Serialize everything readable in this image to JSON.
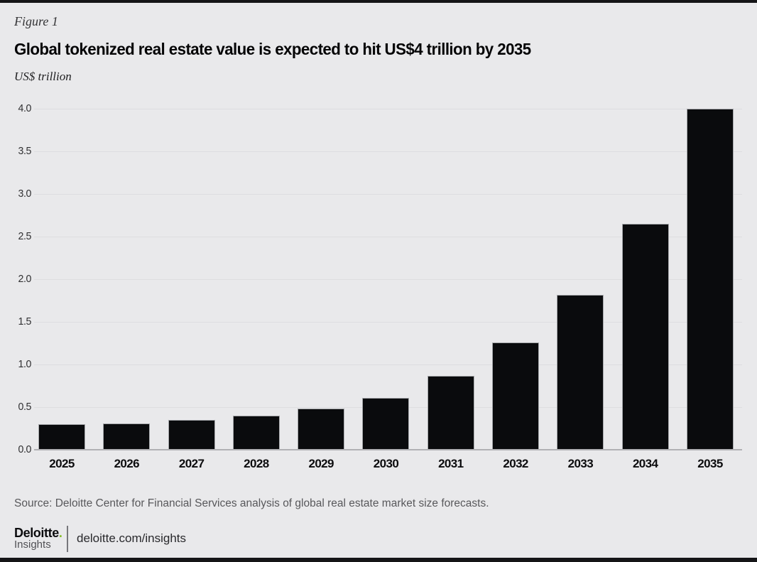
{
  "page": {
    "figure_label": "Figure 1",
    "title": "Global tokenized real estate value is expected to hit US$4 trillion by 2035",
    "unit_label": "US$ trillion",
    "source": "Source: Deloitte Center for Financial Services analysis of global real estate market size forecasts.",
    "footer": {
      "brand": "Deloitte",
      "brand_dot": ".",
      "brand_sub": "Insights",
      "url": "deloitte.com/insights"
    }
  },
  "colors": {
    "background": "#e9e9eb",
    "bar": "#0a0b0d",
    "bar_outline": "#a6a8ab",
    "gridline": "#dddde0",
    "axis_line": "#b1b1b4",
    "top_strip": "#151517",
    "bottom_strip": "#151517",
    "accent_green": "#86bc25",
    "source_text": "#58585b",
    "title_text": "#050506"
  },
  "chart_data": {
    "type": "bar",
    "title": "Global tokenized real estate value is expected to hit US$4 trillion by 2035",
    "xlabel": "",
    "ylabel": "US$ trillion",
    "categories": [
      "2025",
      "2026",
      "2027",
      "2028",
      "2029",
      "2030",
      "2031",
      "2032",
      "2033",
      "2034",
      "2035"
    ],
    "values": [
      0.3,
      0.31,
      0.35,
      0.4,
      0.48,
      0.61,
      0.87,
      1.26,
      1.82,
      2.65,
      4.0
    ],
    "ylim": [
      0,
      4.0
    ],
    "yticks": [
      "4.0",
      "3.5",
      "3.0",
      "2.5",
      "2.0",
      "1.5",
      "1.0",
      "0.5",
      "0.0"
    ],
    "grid": true,
    "legend": false,
    "bar_color": "#0a0b0d"
  }
}
